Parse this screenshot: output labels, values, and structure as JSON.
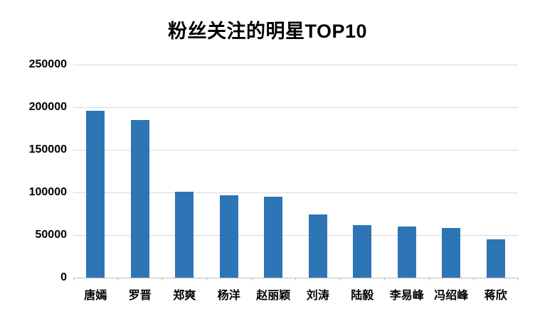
{
  "page": {
    "background_color": "#ffffff",
    "text_color": "#000000"
  },
  "chart_data": {
    "type": "bar",
    "title": "粉丝关注的明星TOP10",
    "categories": [
      "唐嫣",
      "罗晋",
      "郑爽",
      "杨洋",
      "赵丽颖",
      "刘涛",
      "陆毅",
      "李易峰",
      "冯绍峰",
      "蒋欣"
    ],
    "values": [
      196000,
      185000,
      101000,
      97000,
      95000,
      74000,
      62000,
      60000,
      58000,
      45000
    ],
    "xlabel": "",
    "ylabel": "",
    "ylim": [
      0,
      250000
    ],
    "ytick_step": 50000,
    "ytick_labels": [
      "0",
      "50000",
      "100000",
      "150000",
      "200000",
      "250000"
    ],
    "grid": "horizontal",
    "legend_position": "none",
    "bar_color": "#2E75B6",
    "gridline_color": "#D9D9D9",
    "axis_line_color": "#BFBFBF"
  }
}
